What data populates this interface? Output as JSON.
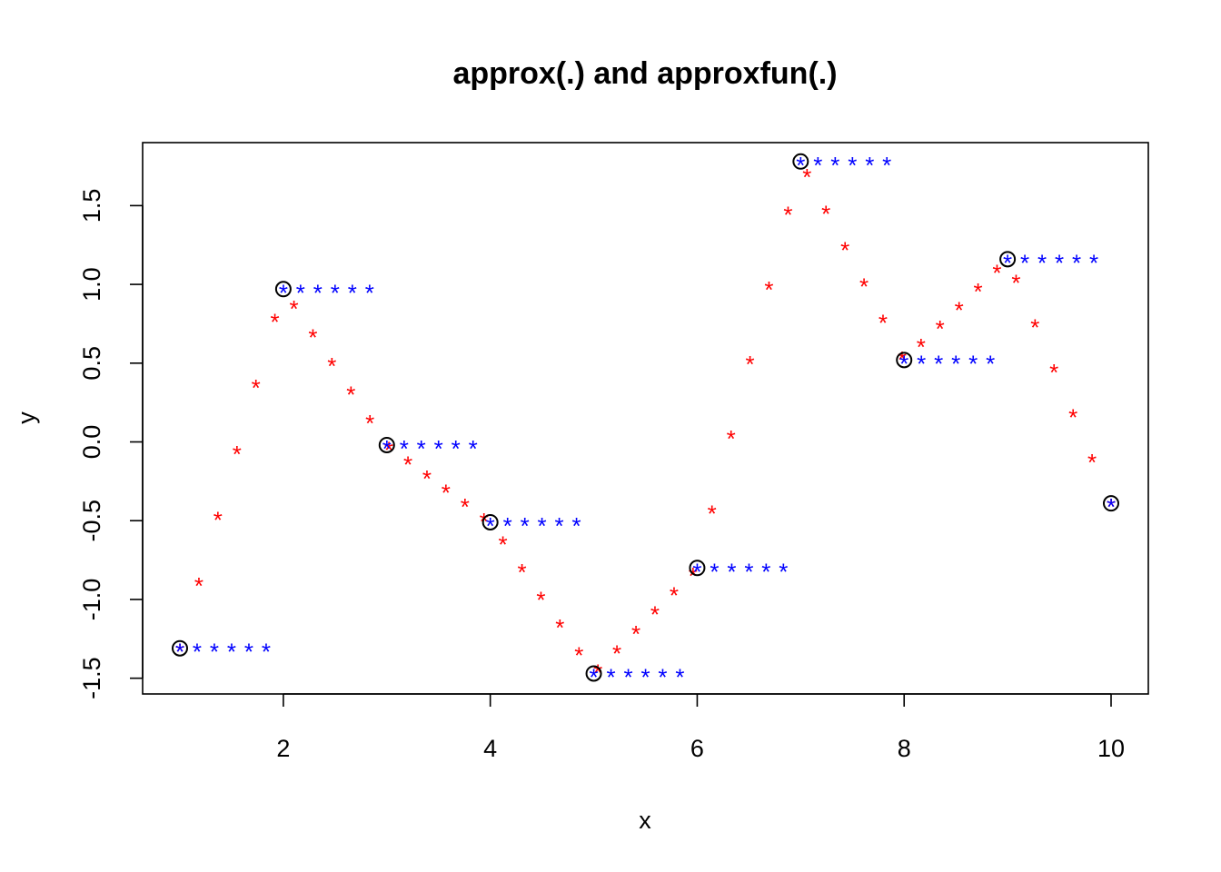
{
  "chart_data": {
    "type": "scatter",
    "title": "approx(.) and approxfun(.)",
    "xlabel": "x",
    "ylabel": "y",
    "xlim": [
      0.64,
      10.36
    ],
    "ylim": [
      -1.6,
      1.9
    ],
    "x_ticks": [
      2,
      4,
      6,
      8,
      10
    ],
    "x_tick_labels": [
      "2",
      "4",
      "6",
      "8",
      "10"
    ],
    "y_ticks": [
      -1.5,
      -1.0,
      -0.5,
      0.0,
      0.5,
      1.0,
      1.5
    ],
    "y_tick_labels": [
      "-1.5",
      "-1.0",
      "-0.5",
      "0.0",
      "0.5",
      "1.0",
      "1.5"
    ],
    "grid": false,
    "series": [
      {
        "marker": "circle",
        "color": "#000000",
        "x": [
          1,
          2,
          3,
          4,
          5,
          6,
          7,
          8,
          9,
          10
        ],
        "y": [
          -1.31,
          0.97,
          -0.02,
          -0.51,
          -1.47,
          -0.8,
          1.78,
          0.52,
          1.16,
          -0.39
        ]
      },
      {
        "marker": "asterisk",
        "color": "#ff0000",
        "interpolation": "linear",
        "n_points": 50
      },
      {
        "marker": "asterisk",
        "color": "#0000ff",
        "interpolation": "constant",
        "n_points_per_interval": 6
      }
    ]
  }
}
